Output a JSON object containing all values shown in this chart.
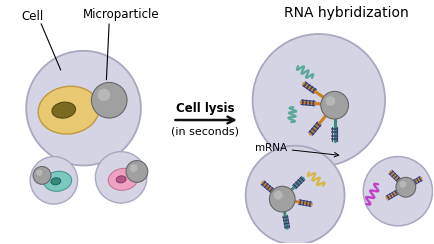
{
  "bg_color": "#ffffff",
  "cell_bg": "#d4d4e4",
  "cell_border": "#a8a8c0",
  "yellow_cell": "#e8c870",
  "yellow_nucleus": "#7a6a20",
  "teal_cell": "#7cc8be",
  "teal_nucleus": "#3a8878",
  "pink_cell": "#f0a0c0",
  "pink_nucleus": "#b85888",
  "mp_light": "#a0a0a0",
  "mp_dark": "#686868",
  "mp_highlight": "#c8c8c8",
  "orange_line": "#cc8020",
  "teal_line": "#3a8878",
  "dna_color": "#384070",
  "mrna_teal": "#5aa898",
  "mrna_yellow": "#d8b848",
  "mrna_purple": "#c040c8",
  "arrow_color": "#111111",
  "title_text": "RNA hybridization",
  "label_cell": "Cell",
  "label_mp": "Microparticle",
  "label_lysis": "Cell lysis",
  "label_insec": "(in seconds)",
  "label_mrna": "mRNA"
}
